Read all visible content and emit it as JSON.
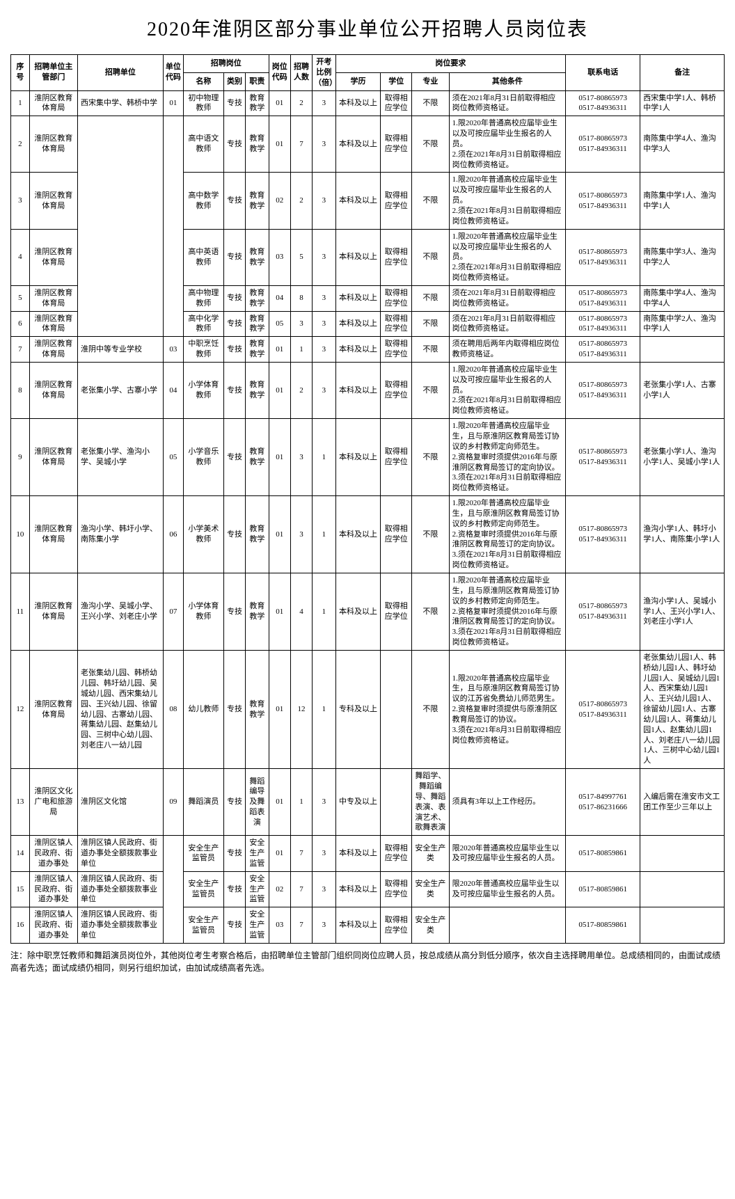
{
  "title": "2020年淮阴区部分事业单位公开招聘人员岗位表",
  "headers": {
    "seq": "序号",
    "dept": "招聘单位主管部门",
    "unit": "招聘单位",
    "unit_code": "单位代码",
    "position_group": "招聘岗位",
    "pos_name": "名称",
    "pos_cat": "类别",
    "pos_duty": "职责",
    "pos_code": "岗位代码",
    "recruit_num": "招聘人数",
    "ratio": "开考比例（倍）",
    "req_group": "岗位要求",
    "edu": "学历",
    "degree": "学位",
    "major": "专业",
    "other": "其他条件",
    "phone": "联系电话",
    "note": "备注"
  },
  "rows": [
    {
      "seq": "1",
      "dept": "淮阴区教育体育局",
      "unit": "西宋集中学、韩桥中学",
      "unit_code": "01",
      "pos_name": "初中物理教师",
      "pos_cat": "专技",
      "pos_duty": "教育教学",
      "pos_code": "01",
      "num": "2",
      "ratio": "3",
      "edu": "本科及以上",
      "degree": "取得相应学位",
      "major": "不限",
      "other": "须在2021年8月31日前取得相应岗位教师资格证。",
      "phone": "0517-80865973\n0517-84936311",
      "note": "西宋集中学1人、韩桥中学1人"
    },
    {
      "seq": "2",
      "dept": "淮阴区教育体育局",
      "unit": "",
      "unit_code": "",
      "pos_name": "高中语文教师",
      "pos_cat": "专技",
      "pos_duty": "教育教学",
      "pos_code": "01",
      "num": "7",
      "ratio": "3",
      "edu": "本科及以上",
      "degree": "取得相应学位",
      "major": "不限",
      "other": "1.限2020年普通高校应届毕业生以及可按应届毕业生报名的人员。\n2.须在2021年8月31日前取得相应岗位教师资格证。",
      "phone": "0517-80865973\n0517-84936311",
      "note": "南陈集中学4人、渔沟中学3人"
    },
    {
      "seq": "3",
      "dept": "淮阴区教育体育局",
      "unit": "",
      "unit_code": "",
      "pos_name": "高中数学教师",
      "pos_cat": "专技",
      "pos_duty": "教育教学",
      "pos_code": "02",
      "num": "2",
      "ratio": "3",
      "edu": "本科及以上",
      "degree": "取得相应学位",
      "major": "不限",
      "other": "1.限2020年普通高校应届毕业生以及可按应届毕业生报名的人员。\n2.须在2021年8月31日前取得相应岗位教师资格证。",
      "phone": "0517-80865973\n0517-84936311",
      "note": "南陈集中学1人、渔沟中学1人"
    },
    {
      "seq": "4",
      "dept": "淮阴区教育体育局",
      "unit": "南陈集中学、渔沟中学",
      "unit_code": "02",
      "pos_name": "高中英语教师",
      "pos_cat": "专技",
      "pos_duty": "教育教学",
      "pos_code": "03",
      "num": "5",
      "ratio": "3",
      "edu": "本科及以上",
      "degree": "取得相应学位",
      "major": "不限",
      "other": "1.限2020年普通高校应届毕业生以及可按应届毕业生报名的人员。\n2.须在2021年8月31日前取得相应岗位教师资格证。",
      "phone": "0517-80865973\n0517-84936311",
      "note": "南陈集中学3人、渔沟中学2人"
    },
    {
      "seq": "5",
      "dept": "淮阴区教育体育局",
      "unit": "",
      "unit_code": "",
      "pos_name": "高中物理教师",
      "pos_cat": "专技",
      "pos_duty": "教育教学",
      "pos_code": "04",
      "num": "8",
      "ratio": "3",
      "edu": "本科及以上",
      "degree": "取得相应学位",
      "major": "不限",
      "other": "须在2021年8月31日前取得相应岗位教师资格证。",
      "phone": "0517-80865973\n0517-84936311",
      "note": "南陈集中学4人、渔沟中学4人"
    },
    {
      "seq": "6",
      "dept": "淮阴区教育体育局",
      "unit": "",
      "unit_code": "",
      "pos_name": "高中化学教师",
      "pos_cat": "专技",
      "pos_duty": "教育教学",
      "pos_code": "05",
      "num": "3",
      "ratio": "3",
      "edu": "本科及以上",
      "degree": "取得相应学位",
      "major": "不限",
      "other": "须在2021年8月31日前取得相应岗位教师资格证。",
      "phone": "0517-80865973\n0517-84936311",
      "note": "南陈集中学2人、渔沟中学1人"
    },
    {
      "seq": "7",
      "dept": "淮阴区教育体育局",
      "unit": "淮阴中等专业学校",
      "unit_code": "03",
      "pos_name": "中职烹饪教师",
      "pos_cat": "专技",
      "pos_duty": "教育教学",
      "pos_code": "01",
      "num": "1",
      "ratio": "3",
      "edu": "本科及以上",
      "degree": "取得相应学位",
      "major": "不限",
      "other": "须在聘用后两年内取得相应岗位教师资格证。",
      "phone": "0517-80865973\n0517-84936311",
      "note": ""
    },
    {
      "seq": "8",
      "dept": "淮阴区教育体育局",
      "unit": "老张集小学、古寨小学",
      "unit_code": "04",
      "pos_name": "小学体育教师",
      "pos_cat": "专技",
      "pos_duty": "教育教学",
      "pos_code": "01",
      "num": "2",
      "ratio": "3",
      "edu": "本科及以上",
      "degree": "取得相应学位",
      "major": "不限",
      "other": "1.限2020年普通高校应届毕业生以及可按应届毕业生报名的人员。\n2.须在2021年8月31日前取得相应岗位教师资格证。",
      "phone": "0517-80865973\n0517-84936311",
      "note": "老张集小学1人、古寨小学1人"
    },
    {
      "seq": "9",
      "dept": "淮阴区教育体育局",
      "unit": "老张集小学、渔沟小学、吴城小学",
      "unit_code": "05",
      "pos_name": "小学音乐教师",
      "pos_cat": "专技",
      "pos_duty": "教育教学",
      "pos_code": "01",
      "num": "3",
      "ratio": "1",
      "edu": "本科及以上",
      "degree": "取得相应学位",
      "major": "不限",
      "other": "1.限2020年普通高校应届毕业生，且与原淮阴区教育局签订协议的乡村教师定向师范生。\n2.资格复审时须提供2016年与原淮阴区教育局签订的定向协议。\n3.须在2021年8月31日前取得相应岗位教师资格证。",
      "phone": "0517-80865973\n0517-84936311",
      "note": "老张集小学1人、渔沟小学1人、吴城小学1人"
    },
    {
      "seq": "10",
      "dept": "淮阴区教育体育局",
      "unit": "渔沟小学、韩圩小学、南陈集小学",
      "unit_code": "06",
      "pos_name": "小学美术教师",
      "pos_cat": "专技",
      "pos_duty": "教育教学",
      "pos_code": "01",
      "num": "3",
      "ratio": "1",
      "edu": "本科及以上",
      "degree": "取得相应学位",
      "major": "不限",
      "other": "1.限2020年普通高校应届毕业生，且与原淮阴区教育局签订协议的乡村教师定向师范生。\n2.资格复审时须提供2016年与原淮阴区教育局签订的定向协议。\n3.须在2021年8月31日前取得相应岗位教师资格证。",
      "phone": "0517-80865973\n0517-84936311",
      "note": "渔沟小学1人、韩圩小学1人、南陈集小学1人"
    },
    {
      "seq": "11",
      "dept": "淮阴区教育体育局",
      "unit": "渔沟小学、吴城小学、王兴小学、刘老庄小学",
      "unit_code": "07",
      "pos_name": "小学体育教师",
      "pos_cat": "专技",
      "pos_duty": "教育教学",
      "pos_code": "01",
      "num": "4",
      "ratio": "1",
      "edu": "本科及以上",
      "degree": "取得相应学位",
      "major": "不限",
      "other": "1.限2020年普通高校应届毕业生，且与原淮阴区教育局签订协议的乡村教师定向师范生。\n2.资格复审时须提供2016年与原淮阴区教育局签订的定向协议。\n3.须在2021年8月31日前取得相应岗位教师资格证。",
      "phone": "0517-80865973\n0517-84936311",
      "note": "渔沟小学1人、吴城小学1人、王兴小学1人、刘老庄小学1人"
    },
    {
      "seq": "12",
      "dept": "淮阴区教育体育局",
      "unit": "老张集幼儿园、韩桥幼儿园、韩圩幼儿园、吴城幼儿园、西宋集幼儿园、王兴幼儿园、徐留幼儿园、古寨幼儿园、蒋集幼儿园、赵集幼儿园、三树中心幼儿园、刘老庄八一幼儿园",
      "unit_code": "08",
      "pos_name": "幼儿教师",
      "pos_cat": "专技",
      "pos_duty": "教育教学",
      "pos_code": "01",
      "num": "12",
      "ratio": "1",
      "edu": "专科及以上",
      "degree": "",
      "major": "不限",
      "other": "1.限2020年普通高校应届毕业生，且与原淮阴区教育局签订协议的江苏省免费幼儿师范男生。\n2.资格复审时须提供与原淮阴区教育局签订的协议。\n3.须在2021年8月31日前取得相应岗位教师资格证。",
      "phone": "0517-80865973\n0517-84936311",
      "note": "老张集幼儿园1人、韩桥幼儿园1人、韩圩幼儿园1人、吴城幼儿园1人、西宋集幼儿园1人、王兴幼儿园1人、徐留幼儿园1人、古寨幼儿园1人、蒋集幼儿园1人、赵集幼儿园1人、刘老庄八一幼儿园1人、三树中心幼儿园1人"
    },
    {
      "seq": "13",
      "dept": "淮阴区文化广电和旅游局",
      "unit": "淮阴区文化馆",
      "unit_code": "09",
      "pos_name": "舞蹈演员",
      "pos_cat": "专技",
      "pos_duty": "舞蹈编导及舞蹈表演",
      "pos_code": "01",
      "num": "1",
      "ratio": "3",
      "edu": "中专及以上",
      "degree": "",
      "major": "舞蹈学、舞蹈编导、舞蹈表演、表演艺术、歌舞表演",
      "other": "须具有3年以上工作经历。",
      "phone": "0517-84997761\n0517-86231666",
      "note": "入编后需在淮安市文工团工作至少三年以上"
    },
    {
      "seq": "14",
      "dept": "淮阴区镇人民政府、街道办事处",
      "unit": "淮阴区镇人民政府、街道办事处全额拨款事业单位",
      "unit_code": "",
      "pos_name": "安全生产监管员",
      "pos_cat": "专技",
      "pos_duty": "安全生产监管",
      "pos_code": "01",
      "num": "7",
      "ratio": "3",
      "edu": "本科及以上",
      "degree": "取得相应学位",
      "major": "安全生产类",
      "other": "限2020年普通高校应届毕业生以及可按应届毕业生报名的人员。",
      "phone": "0517-80859861",
      "note": ""
    },
    {
      "seq": "15",
      "dept": "淮阴区镇人民政府、街道办事处",
      "unit": "淮阴区镇人民政府、街道办事处全额拨款事业单位",
      "unit_code": "10",
      "pos_name": "安全生产监管员",
      "pos_cat": "专技",
      "pos_duty": "安全生产监管",
      "pos_code": "02",
      "num": "7",
      "ratio": "3",
      "edu": "本科及以上",
      "degree": "取得相应学位",
      "major": "安全生产类",
      "other": "限2020年普通高校应届毕业生以及可按应届毕业生报名的人员。",
      "phone": "0517-80859861",
      "note": ""
    },
    {
      "seq": "16",
      "dept": "淮阴区镇人民政府、街道办事处",
      "unit": "淮阴区镇人民政府、街道办事处全额拨款事业单位",
      "unit_code": "",
      "pos_name": "安全生产监管员",
      "pos_cat": "专技",
      "pos_duty": "安全生产监管",
      "pos_code": "03",
      "num": "7",
      "ratio": "3",
      "edu": "本科及以上",
      "degree": "取得相应学位",
      "major": "安全生产类",
      "other": "",
      "phone": "0517-80859861",
      "note": ""
    }
  ],
  "footnote": "注：除中职烹饪教师和舞蹈演员岗位外，其他岗位考生考察合格后，由招聘单位主管部门组织同岗位应聘人员，按总成绩从高分到低分顺序，依次自主选择聘用单位。总成绩相同的，由面试成绩高者先选；面试成绩仍相同，则另行组织加试，由加试成绩高者先选。"
}
